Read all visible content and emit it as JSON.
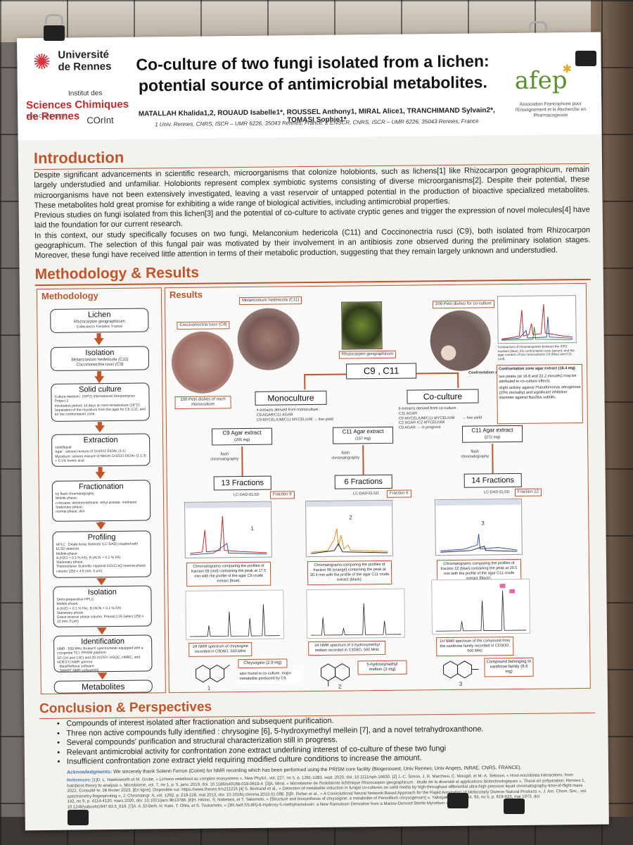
{
  "header": {
    "univ_name": "Université\nde Rennes",
    "iscr_top": "Institut des",
    "iscr_main": "Sciences Chimiques\nde Rennes",
    "iscr_sub": "UMR CNRS 6226",
    "iscr_corint": "COrInt",
    "title": "Co-culture of two fungi isolated from a lichen: potential source of antimicrobial metabolites.",
    "authors": "MATALLAH Khalida1,2, ROUAUD Isabelle1*, ROUSSEL Anthony1, MIRAL Alice1, TRANCHIMAND Sylvain2*, TOMASI Sophie1*",
    "affiliations": "1 Univ. Rennes, CNRS, ISCR – UMR 6226, 35043 Rennes, France. 2 ENSCR, CNRS, ISCR – UMR 6226, 35043 Rennes, France",
    "afe_logo": "afep",
    "afe_sub": "Association Francophone pour l'Enseignement et la Recherche en Pharmacognosie"
  },
  "introduction": {
    "heading": "Introduction",
    "p1": "Despite significant advancements in scientific research, microorganisms that colonize holobionts, such as lichens[1] like Rhizocarpon geographicum, remain largely understudied and unfamiliar. Holobionts represent complex symbiotic systems consisting of diverse microorganisms[2]. Despite their potential, these microorganisms have not been extensively investigated, leaving a vast reservoir of untapped potential in the production of bioactive specialized metabolites. These metabolites hold great promise for exhibiting a wide range of biological activities, including antimicrobial properties.",
    "p2": "Previous studies on fungi isolated from this lichen[3] and the potential of co-culture to activate cryptic genes and trigger the expression of novel molecules[4] have laid the foundation for our current research.",
    "p3": "In this context, our study specifically focuses on two fungi, Melanconium hedericola (C11) and Coccinonectria rusci (C9), both isolated from Rhizocarpon geographicum. The selection of this fungal pair was motivated by their involvement in an antibiosis zone observed during the preliminary isolation stages. Moreover, these fungi have received little attention in terms of their metabolic production, suggesting that they remain largely unknown and understudied."
  },
  "methods": {
    "heading": "Methodology & Results",
    "left_title": "Methodology",
    "steps": [
      {
        "title": "Lichen",
        "sub": "Rhizocarpon geographicum",
        "detail": "Collected in Finistère, France"
      },
      {
        "title": "Isolation",
        "sub": "Melanconium hedericola (C11)\nCoccinonectria rusci (C9)",
        "detail": ""
      },
      {
        "title": "Solid culture",
        "sub": "",
        "detail": "Culture medium : (ISP2) International Streptomyces Project 2\nIncubation period: 14 days at room temperature (18°C)\nSeparation of the mycelium from the agar for C9, C11, and for the confrontation zone."
      },
      {
        "title": "Extraction",
        "sub": "",
        "detail": "solid/liquid\nAgar : solvent mixture of CH2Cl2 EtOAc (1:1)\nMycelium: solvent mixture of MeOH CH2Cl2 EtOAc (1:1:3) + 0.1% formic acid"
      },
      {
        "title": "Fractionation",
        "sub": "",
        "detail": "by flash chromatography\nMobile phase:\nn-hexane, dichloromethane, ethyl acetate, methanol\nStationary phase:\nnormal phase, diol"
      },
      {
        "title": "Profiling",
        "sub": "",
        "detail": "HPLC : Diode Array Detector (LC-DAD) coupled with ELSD detector.\nMobile phase:\nA (H2O + 0.1 % FA), B (ACN + 0.1 % FA)\nStationary phase:\nThermofisher Scientific Hypersil GOLD aQ reverse phase column (250 x 4.6 mm, 5 µm)"
      },
      {
        "title": "Isolation",
        "sub": "",
        "detail": "Semi-preparative HPLC\nMobile phase:\nA (H2O + 0.1 % FA), B (ACN + 0.1 % FA)\nStationary phase:\nGrace reverse phase column, Prevail C18-Select (250 x 10 mm; 5 µm)"
      },
      {
        "title": "Identification",
        "sub": "",
        "detail": "NMR : 500 MHz Bruker® spectrometer equipped with a cryoprobe TCI, PRISM platform\n1D (1H and 13C) and 2D (COSY, HSQC, HMBC, and NOESY) NMR spectra\n- MestReNova software\n- SMART NMR software[5]"
      },
      {
        "title": "Metabolites",
        "sub": "",
        "detail": ""
      }
    ]
  },
  "results": {
    "title": "Results",
    "label_c11": "Melanconium hedericola (C11)",
    "label_c9": "Coccinonectria rusci (C9)",
    "label_rhizo": "Rhizocarpon geographicum",
    "label_100": "100 Petri dishes of each monoculture",
    "label_200": "200 Petri dishes for co-culture",
    "label_zone": "Confrontation zone (CZ)",
    "chrom_caption": "Comparison of chromatograms between the ISP2 medium (blue), the confrontation zone (green), and the agar extracts of two monocultures C9 (blue) and C11 (red).",
    "cz_title": "Confrontation zone agar extract (18.4 mg)",
    "cz_b1": "two peaks (at 16.8 and 22.2 minutes) may be attributed to co-culture effects.",
    "cz_b2": "slight activity against Pseudomonas aeruginosa (20% mortality) and significant inhibition diameter against Bacillus subtilis.",
    "center_box": "C9 , C11",
    "mono_box": "Monoculture",
    "co_box": "Co-culture",
    "mono_detail": "4 extracts derived from monoculture :\nC9 AGAR/C11 AGAR\nC9 MYCELIUM/C11 MYCELIUM → low yield",
    "co_detail": "6 extracts derived from co-culture :\nC11 AGAR\nC9 MYCELIUM/C11 MYCELIUM\nCZ AGAR /CZ MYCELIUM\nC9 AGAR → in progress",
    "co_low": "→ low yield",
    "ext1": "C9 Agar extract",
    "ext1_mg": "(205 mg)",
    "ext2": "C11 Agar extract",
    "ext2_mg": "(157 mg)",
    "ext3": "C11 Agar extract",
    "ext3_mg": "(272 mg)",
    "flash": "flash\nchromatography",
    "frac1": "13 Fractions",
    "frac2": "6 Fractions",
    "frac3": "14 Fractions",
    "lcdad": "LC-DAD-ELSD",
    "fr9": "Fraction 9",
    "fr6": "Fraction 6",
    "fr12": "Fraction 12",
    "cap1": "Chromatograms comparing the profiles of fraction 09 (red) containing the peak at 17.5 min with the profile of the agar C9 crude extract (blue).",
    "cap2": "Chromatograms comparing the profiles of fraction 06 (orange) containing the peak at 20.4 min with the profile of the agar C11 crude extract (black).",
    "cap3": "Chromatograms comparing the profiles of fraction 12 (blue) containing the peak at 20.5 min with the profile of the agar C11 crude extract (black).",
    "nmr1": "1H NMR spectrum of chrysogine recorded in C3D6O, 500 MHz",
    "nmr2": "1H NMR spectrum of 5-hydroxymethyl mellein recorded in C3D6O, 500 MHz",
    "nmr3": "1H NMR spectrum of the compound from the xanthone family recorded in CD3OD, 500 MHz",
    "cmp1": "Chrysogine (2.9 mg)",
    "cmp1_note": "also found in co-culture, major metabolite produced by C9.",
    "cmp2": "5-hydroxymethyl mellein (3 mg)",
    "cmp3": "Compound belonging to xanthone family (6.6 mg)",
    "n1": "1",
    "n2": "2",
    "n3": "3"
  },
  "conclusion": {
    "heading": "Conclusion & Perspectives",
    "items": [
      "Compounds of interest isolated after fractionation and subsequent purification.",
      "Three non active compounds fully identified : chrysogine [6], 5-hydroxymethyl mellein [7], and a novel tetrahydroxanthone.",
      "Several compounds' purification and structural characterization still in progress.",
      "Relevant antimicrobial activity for confrontation zone extract underlining interest of co-culture of these two fungi",
      "Insufficient confrontation zone extract yield requiring modified culture conditions to increase the amount."
    ],
    "ack_label": "Acknowledgments:",
    "ack_text": "We sincerely thank Solenn Ferron (Corint) for NMR recording which has been performed using the PRISM core facility (Biogenouest, Univ Rennes, Univ Angers, INRAE, CNRS, FRANCE).",
    "refs_label": "References:",
    "refs_text": "[1]D. L. Hawksworth et M. Grube, « Lichens redefined as complex ecosystems », New Phytol., vol. 227, no 5, p. 1281-1283, sept. 2020, doi: 10.1111/nph.16630. [2] J.-C. Simon, J. R. Marchesi, C. Mougel, et M.-A. Selosse, « Host-microbiota interactions: from holobiont theory to analysis », Microbiome, vol. 7, no 1, p. 5, janv. 2019, doi: 10.1186/s40168-019-0619-4. [3]A. Miral, « Microbiome de l'holobionte lichénique Rhizocarpon geographicum : étude de la diversité et applications biotechnologiques », These en préparation, Rennes 1, 2022. Consulté le: 28 février 2023. [En ligne]. Disponible sur: https://www.theses.fr/s211215 [4] S. Bertrand et al., « Detection of metabolite induction in fungal co-cultures on solid media by high-throughput differential ultra-high pressure liquid chromatography-time-of-flight mass spectrometry fingerprinting », J. Chromatogr. A, vol. 1292, p. 219-228, mai 2013, doi: 10.1016/j.chroma.2013.01.098. [5]R. Reher et al., « A Convolutional Neural Network-Based Approach for the Rapid Annotation of Molecularly Diverse Natural Products », J. Am. Chem. Soc., vol. 142, no 9, p. 4114-4120, mars 2020, doi: 10.1021/jacs.9b13786. [6]H. Hikino, S. Nabetani, et T. Takemoto, « [Structure and biosynthesis of chrysogine, a metabolite of Penicillium chrysogenum] », Yakugaku Zasshi, vol. 93, no 5, p. 619-623, mai 1973, doi: 10.1248/yakushi1947.93.5_619. [7]A. A. El-Beih, H. Kato, T. Ohta, et S. Tsukamoto, « (3R,4aR,5S,6R)-6-Hydroxy-5-methylramulosin: a New Ramulosin Derivative from a Marine-Derived Sterile Mycelium »"
  },
  "colors": {
    "accent": "#c0552a",
    "brand_red": "#c4282d",
    "afe_green": "#5c8f2e"
  }
}
